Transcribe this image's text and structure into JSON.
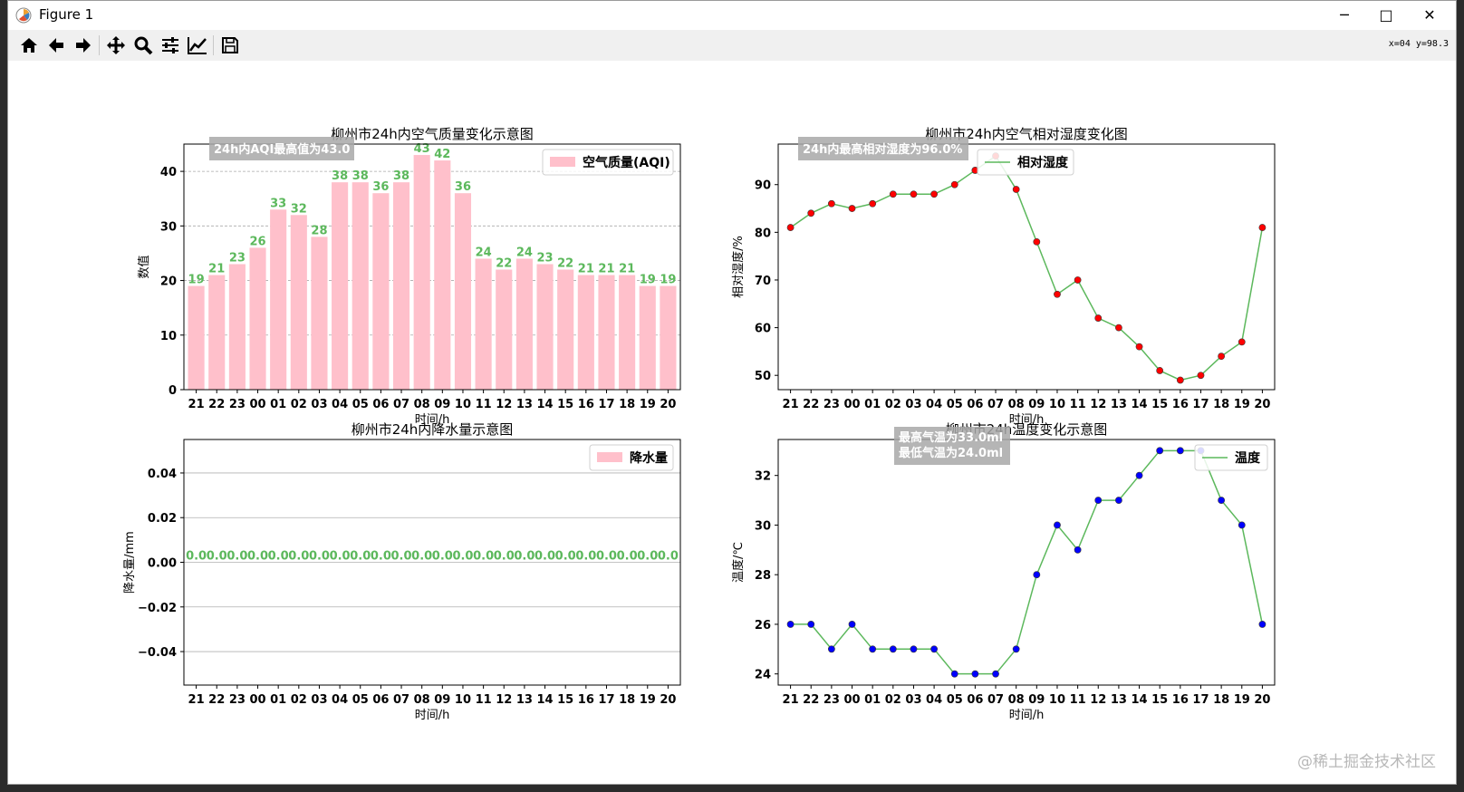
{
  "window": {
    "title": "Figure 1",
    "minimize_glyph": "─",
    "maximize_glyph": "□",
    "close_glyph": "✕",
    "coord_readout": "x=04  y=98.3"
  },
  "toolbar": {
    "buttons": [
      "home-icon",
      "back-icon",
      "forward-icon",
      "pan-icon",
      "zoom-icon",
      "configure-subplots-icon",
      "edit-axis-icon",
      "save-icon"
    ]
  },
  "watermark": "@稀土掘金技术社区",
  "chart_data": [
    {
      "type": "bar",
      "title": "柳州市24h内空气质量变化示意图",
      "xlabel": "时间/h",
      "ylabel": "数值",
      "categories": [
        "21",
        "22",
        "23",
        "00",
        "01",
        "02",
        "03",
        "04",
        "05",
        "06",
        "07",
        "08",
        "09",
        "10",
        "11",
        "12",
        "13",
        "14",
        "15",
        "16",
        "17",
        "18",
        "19",
        "20"
      ],
      "series": [
        {
          "name": "空气质量(AQI)",
          "values": [
            19,
            21,
            23,
            26,
            33,
            32,
            28,
            38,
            38,
            36,
            38,
            43,
            42,
            36,
            24,
            22,
            24,
            23,
            22,
            21,
            21,
            21,
            19,
            19
          ]
        }
      ],
      "value_labels": [
        "19",
        "21",
        "23",
        "26",
        "33",
        "32",
        "28",
        "38",
        "38",
        "36",
        "38",
        "43",
        "42",
        "36",
        "24",
        "22",
        "24",
        "23",
        "22",
        "21",
        "21",
        "21",
        "19",
        "19"
      ],
      "yticks": [
        "0",
        "10",
        "20",
        "30",
        "40"
      ],
      "ylim": [
        0,
        45
      ],
      "annotation": "24h内AQI最高值为43.0",
      "legend_position": "upper right",
      "grid": "horizontal dashed",
      "bar_color": "#ffc0cb",
      "label_color": "#5cb85c"
    },
    {
      "type": "line",
      "title": "柳州市24h内空气相对湿度变化图",
      "xlabel": "时间/h",
      "ylabel": "相对湿度/%",
      "categories": [
        "21",
        "22",
        "23",
        "00",
        "01",
        "02",
        "03",
        "04",
        "05",
        "06",
        "07",
        "08",
        "09",
        "10",
        "11",
        "12",
        "13",
        "14",
        "15",
        "16",
        "17",
        "18",
        "19",
        "20"
      ],
      "series": [
        {
          "name": "相对湿度",
          "values": [
            81,
            84,
            86,
            85,
            86,
            88,
            88,
            88,
            90,
            93,
            96,
            89,
            78,
            67,
            70,
            62,
            60,
            56,
            51,
            49,
            50,
            54,
            57,
            81
          ]
        }
      ],
      "yticks": [
        "50",
        "60",
        "70",
        "80",
        "90"
      ],
      "ylim": [
        47,
        98.5
      ],
      "annotation": "24h内最高相对湿度为96.0%",
      "legend_position": "upper center",
      "line_color": "#5cb85c",
      "marker_color": "#ff0000"
    },
    {
      "type": "bar",
      "title": "柳州市24h内降水量示意图",
      "xlabel": "时间/h",
      "ylabel": "降水量/mm",
      "categories": [
        "21",
        "22",
        "23",
        "00",
        "01",
        "02",
        "03",
        "04",
        "05",
        "06",
        "07",
        "08",
        "09",
        "10",
        "11",
        "12",
        "13",
        "14",
        "15",
        "16",
        "17",
        "18",
        "19",
        "20"
      ],
      "series": [
        {
          "name": "降水量",
          "values": [
            0,
            0,
            0,
            0,
            0,
            0,
            0,
            0,
            0,
            0,
            0,
            0,
            0,
            0,
            0,
            0,
            0,
            0,
            0,
            0,
            0,
            0,
            0,
            0
          ]
        }
      ],
      "value_labels": [
        "0.0",
        "0.0",
        "0.0",
        "0.0",
        "0.0",
        "0.0",
        "0.0",
        "0.0",
        "0.0",
        "0.0",
        "0.0",
        "0.0",
        "0.0",
        "0.0",
        "0.0",
        "0.0",
        "0.0",
        "0.0",
        "0.0",
        "0.0",
        "0.0",
        "0.0",
        "0.0",
        "0.0"
      ],
      "yticks": [
        "0.04",
        "0.02",
        "0.00",
        "−0.02",
        "−0.04"
      ],
      "ylim": [
        -0.055,
        0.055
      ],
      "legend_position": "upper right",
      "grid": "horizontal solid",
      "bar_color": "#ffc0cb",
      "label_color": "#5cb85c"
    },
    {
      "type": "line",
      "title": "柳州市24h温度变化示意图",
      "xlabel": "时间/h",
      "ylabel": "温度/℃",
      "categories": [
        "21",
        "22",
        "23",
        "00",
        "01",
        "02",
        "03",
        "04",
        "05",
        "06",
        "07",
        "08",
        "09",
        "10",
        "11",
        "12",
        "13",
        "14",
        "15",
        "16",
        "17",
        "18",
        "19",
        "20"
      ],
      "series": [
        {
          "name": "温度",
          "values": [
            26,
            26,
            25,
            26,
            25,
            25,
            25,
            25,
            24,
            24,
            24,
            25,
            28,
            30,
            29,
            31,
            31,
            32,
            33,
            33,
            33,
            31,
            30,
            26
          ]
        }
      ],
      "yticks": [
        "24",
        "26",
        "28",
        "30",
        "32"
      ],
      "ylim": [
        23.55,
        33.45
      ],
      "annotation_lines": [
        "最高气温为33.0ml",
        "最低气温为24.0ml"
      ],
      "legend_position": "upper right",
      "line_color": "#5cb85c",
      "marker_color": "#0000ff"
    }
  ]
}
